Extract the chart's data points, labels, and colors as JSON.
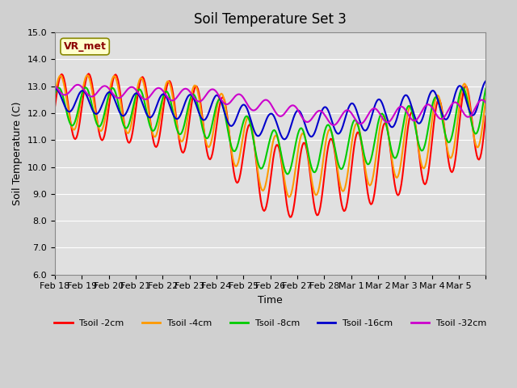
{
  "title": "Soil Temperature Set 3",
  "xlabel": "Time",
  "ylabel": "Soil Temperature (C)",
  "ylim": [
    6.0,
    15.0
  ],
  "yticks": [
    6.0,
    7.0,
    8.0,
    9.0,
    10.0,
    11.0,
    12.0,
    13.0,
    14.0,
    15.0
  ],
  "xtick_labels": [
    "Feb 18",
    "Feb 19",
    "Feb 20",
    "Feb 21",
    "Feb 22",
    "Feb 23",
    "Feb 24",
    "Feb 25",
    "Feb 26",
    "Feb 27",
    "Feb 28",
    "Mar 1",
    "Mar 2",
    "Mar 3",
    "Mar 4",
    "Mar 5"
  ],
  "series": [
    {
      "label": "Tsoil -2cm",
      "color": "#ff0000"
    },
    {
      "label": "Tsoil -4cm",
      "color": "#ff9900"
    },
    {
      "label": "Tsoil -8cm",
      "color": "#00cc00"
    },
    {
      "label": "Tsoil -16cm",
      "color": "#0000cc"
    },
    {
      "label": "Tsoil -32cm",
      "color": "#cc00cc"
    }
  ],
  "legend_label": "VR_met",
  "linewidth": 1.5
}
